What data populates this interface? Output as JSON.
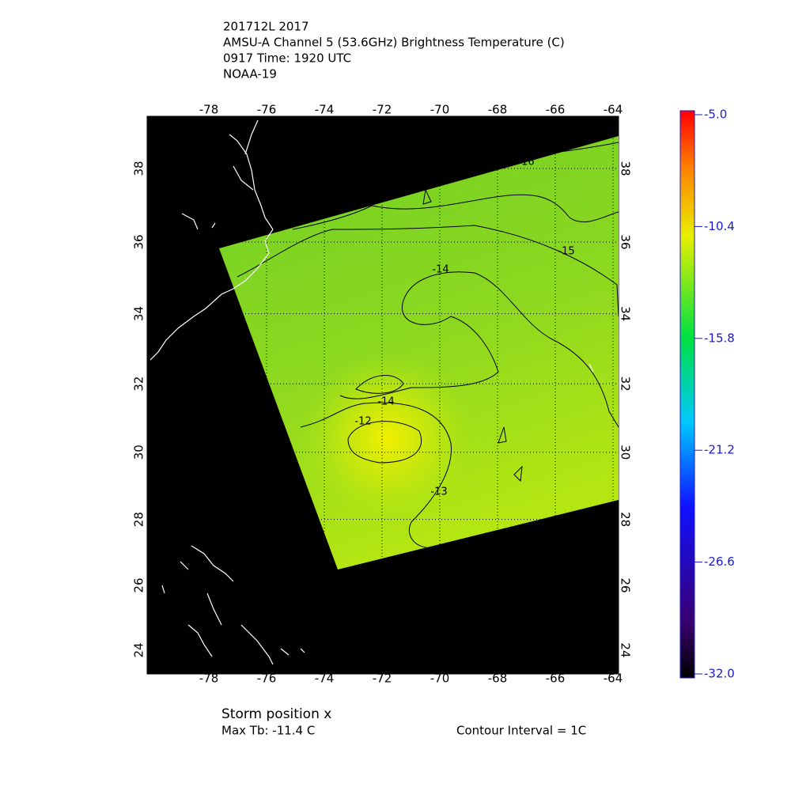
{
  "header": {
    "lines": [
      "201712L 2017",
      "AMSU-A Channel 5 (53.6GHz) Brightness Temperature (C)",
      "0917 Time: 1920 UTC",
      "NOAA-19"
    ]
  },
  "map": {
    "lon_ticks": [
      -78,
      -76,
      -74,
      -72,
      -70,
      -68,
      -66,
      -64
    ],
    "lat_ticks": [
      38,
      36,
      34,
      32,
      30,
      28,
      26,
      24
    ],
    "contour_labels": [
      "-16",
      "-15",
      "-14",
      "-14",
      "-12",
      "-13"
    ]
  },
  "colorbar": {
    "lim": [
      -32,
      -5
    ],
    "ticks": [
      {
        "value": -5,
        "label": "-5.0"
      },
      {
        "value": -10.4,
        "label": "-10.4"
      },
      {
        "value": -15.8,
        "label": "-15.8"
      },
      {
        "value": -21.2,
        "label": "-21.2"
      },
      {
        "value": -26.6,
        "label": "-26.6"
      },
      {
        "value": -32,
        "label": "-32.0"
      }
    ]
  },
  "footer": {
    "storm": "Storm position x",
    "max_tb": "Max Tb: -11.4    C",
    "interval": "Contour Interval = 1C"
  }
}
